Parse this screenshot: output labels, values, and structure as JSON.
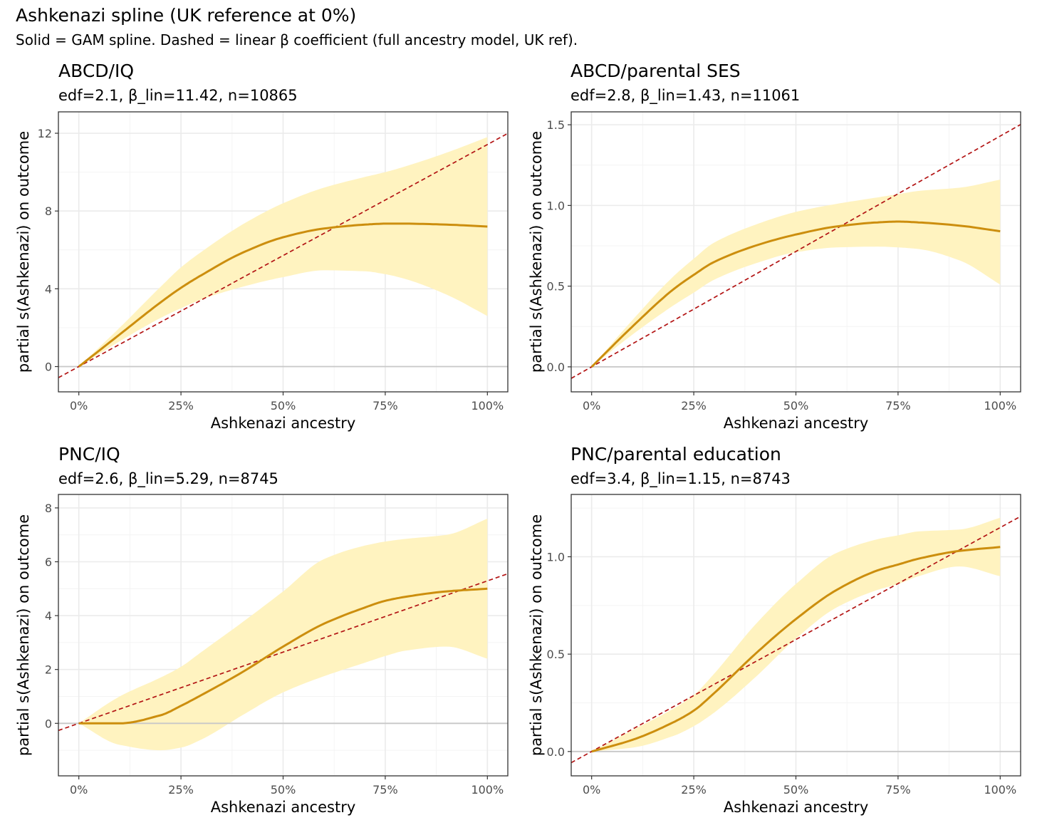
{
  "figure": {
    "title": "Ashkenazi spline (UK reference at 0%)",
    "subtitle": "Solid = GAM spline. Dashed = linear β coefficient (full ancestry model, UK ref)."
  },
  "colors": {
    "spline": "#cc8e0e",
    "band": "#fff3c0",
    "linear": "#b31414",
    "zero_line": "#c8c8c8",
    "grid_major": "#ebebeb",
    "grid_minor": "#f4f4f4",
    "frame": "#333333"
  },
  "chart_data": [
    {
      "type": "line",
      "title": "ABCD/IQ",
      "subtitle": "edf=2.1, β_lin=11.42, n=10865",
      "xlabel": "Ashkenazi ancestry",
      "ylabel": "partial s(Ashkenazi) on outcome",
      "xlim": [
        -0.05,
        1.05
      ],
      "ylim": [
        -1.3,
        13.1
      ],
      "x_ticks": [
        0,
        0.25,
        0.5,
        0.75,
        1.0
      ],
      "x_tick_labels": [
        "0%",
        "25%",
        "50%",
        "75%",
        "100%"
      ],
      "y_ticks": [
        0,
        4,
        8,
        12
      ],
      "y_tick_labels": [
        "0",
        "4",
        "8",
        "12"
      ],
      "linear_slope": 11.42,
      "x": [
        0,
        0.1,
        0.2,
        0.25,
        0.3,
        0.4,
        0.5,
        0.6,
        0.7,
        0.75,
        0.8,
        0.9,
        1.0
      ],
      "spline": [
        0,
        1.65,
        3.3,
        4.05,
        4.7,
        5.85,
        6.65,
        7.1,
        7.3,
        7.35,
        7.35,
        7.3,
        7.2
      ],
      "lower": [
        0,
        1.3,
        2.5,
        3.0,
        3.45,
        4.1,
        4.6,
        4.95,
        4.9,
        4.75,
        4.5,
        3.7,
        2.6
      ],
      "upper": [
        0,
        2.0,
        4.1,
        5.1,
        5.9,
        7.3,
        8.4,
        9.2,
        9.75,
        10.0,
        10.3,
        11.0,
        11.8
      ]
    },
    {
      "type": "line",
      "title": "ABCD/parental SES",
      "subtitle": "edf=2.8, β_lin=1.43, n=11061",
      "xlabel": "Ashkenazi ancestry",
      "ylabel": "partial s(Ashkenazi) on outcome",
      "xlim": [
        -0.05,
        1.05
      ],
      "ylim": [
        -0.155,
        1.58
      ],
      "x_ticks": [
        0,
        0.25,
        0.5,
        0.75,
        1.0
      ],
      "x_tick_labels": [
        "0%",
        "25%",
        "50%",
        "75%",
        "100%"
      ],
      "y_ticks": [
        0,
        0.5,
        1.0,
        1.5
      ],
      "y_tick_labels": [
        "0.0",
        "0.5",
        "1.0",
        "1.5"
      ],
      "linear_slope": 1.43,
      "x": [
        0,
        0.1,
        0.2,
        0.25,
        0.3,
        0.4,
        0.5,
        0.6,
        0.7,
        0.75,
        0.8,
        0.9,
        1.0
      ],
      "spline": [
        0,
        0.25,
        0.48,
        0.57,
        0.65,
        0.75,
        0.82,
        0.87,
        0.895,
        0.9,
        0.895,
        0.875,
        0.84
      ],
      "lower": [
        0,
        0.2,
        0.38,
        0.46,
        0.54,
        0.64,
        0.71,
        0.74,
        0.745,
        0.74,
        0.73,
        0.66,
        0.51
      ],
      "upper": [
        0,
        0.29,
        0.56,
        0.67,
        0.77,
        0.88,
        0.96,
        1.01,
        1.05,
        1.07,
        1.09,
        1.11,
        1.16
      ]
    },
    {
      "type": "line",
      "title": "PNC/IQ",
      "subtitle": "edf=2.6, β_lin=5.29, n=8745",
      "xlabel": "Ashkenazi ancestry",
      "ylabel": "partial s(Ashkenazi) on outcome",
      "xlim": [
        -0.05,
        1.05
      ],
      "ylim": [
        -1.95,
        8.5
      ],
      "x_ticks": [
        0,
        0.25,
        0.5,
        0.75,
        1.0
      ],
      "x_tick_labels": [
        "0%",
        "25%",
        "50%",
        "75%",
        "100%"
      ],
      "y_ticks": [
        0,
        2,
        4,
        6,
        8
      ],
      "y_tick_labels": [
        "0",
        "2",
        "4",
        "6",
        "8"
      ],
      "linear_slope": 5.29,
      "x": [
        0,
        0.1,
        0.2,
        0.25,
        0.3,
        0.4,
        0.5,
        0.6,
        0.7,
        0.75,
        0.8,
        0.9,
        1.0
      ],
      "spline": [
        0,
        0,
        0.3,
        0.65,
        1.05,
        1.9,
        2.85,
        3.7,
        4.3,
        4.55,
        4.7,
        4.9,
        5.0
      ],
      "lower": [
        0,
        -0.8,
        -1.0,
        -0.9,
        -0.6,
        0.3,
        1.15,
        1.75,
        2.25,
        2.5,
        2.7,
        2.85,
        2.4
      ],
      "upper": [
        0,
        1.0,
        1.7,
        2.1,
        2.65,
        3.75,
        4.9,
        6.1,
        6.6,
        6.75,
        6.85,
        7.0,
        7.6
      ]
    },
    {
      "type": "line",
      "title": "PNC/parental education",
      "subtitle": "edf=3.4, β_lin=1.15, n=8743",
      "xlabel": "Ashkenazi ancestry",
      "ylabel": "partial s(Ashkenazi) on outcome",
      "xlim": [
        -0.05,
        1.05
      ],
      "ylim": [
        -0.125,
        1.32
      ],
      "x_ticks": [
        0,
        0.25,
        0.5,
        0.75,
        1.0
      ],
      "x_tick_labels": [
        "0%",
        "25%",
        "50%",
        "75%",
        "100%"
      ],
      "y_ticks": [
        0,
        0.5,
        1.0
      ],
      "y_tick_labels": [
        "0.0",
        "0.5",
        "1.0"
      ],
      "linear_slope": 1.15,
      "x": [
        0,
        0.1,
        0.2,
        0.25,
        0.3,
        0.4,
        0.5,
        0.6,
        0.7,
        0.75,
        0.8,
        0.9,
        1.0
      ],
      "spline": [
        0,
        0.06,
        0.15,
        0.21,
        0.3,
        0.5,
        0.68,
        0.83,
        0.93,
        0.96,
        0.99,
        1.03,
        1.05
      ],
      "lower": [
        0,
        0.02,
        0.08,
        0.13,
        0.2,
        0.38,
        0.58,
        0.74,
        0.83,
        0.86,
        0.9,
        0.95,
        0.9
      ],
      "upper": [
        0,
        0.11,
        0.22,
        0.29,
        0.4,
        0.65,
        0.86,
        1.02,
        1.09,
        1.11,
        1.13,
        1.14,
        1.2
      ]
    }
  ]
}
